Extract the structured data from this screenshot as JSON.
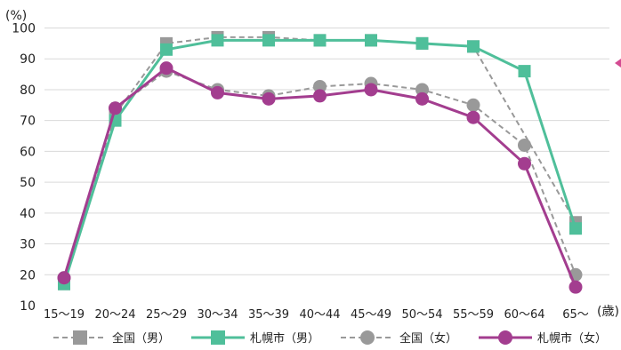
{
  "chart_data": {
    "type": "line",
    "y_unit_label": "(%)",
    "x_unit_label": "(歳)",
    "ylim": [
      10,
      100
    ],
    "yticks": [
      10,
      20,
      30,
      40,
      50,
      60,
      70,
      80,
      90,
      100
    ],
    "grid": true,
    "legend_position": "bottom",
    "categories": [
      "15〜19",
      "20〜24",
      "25〜29",
      "30〜34",
      "35〜39",
      "40〜44",
      "45〜49",
      "50〜54",
      "55〜59",
      "60〜64",
      "65〜"
    ],
    "series": [
      {
        "name": "全国（男）",
        "color": "#999999",
        "line_style": "dashed",
        "marker": "square",
        "values": [
          17,
          72,
          95,
          97,
          97,
          96,
          96,
          95,
          94,
          null,
          37
        ]
      },
      {
        "name": "札幌市（男）",
        "color": "#4fbf9a",
        "line_style": "solid",
        "marker": "square",
        "values": [
          17,
          70,
          93,
          96,
          96,
          96,
          96,
          95,
          94,
          86,
          35
        ]
      },
      {
        "name": "全国（女）",
        "color": "#999999",
        "line_style": "dashed",
        "marker": "circle",
        "values": [
          19,
          74,
          86,
          80,
          78,
          81,
          82,
          80,
          75,
          62,
          20
        ]
      },
      {
        "name": "札幌市（女）",
        "color": "#a33d8f",
        "line_style": "solid",
        "marker": "circle",
        "values": [
          19,
          74,
          87,
          79,
          77,
          78,
          80,
          77,
          71,
          56,
          16
        ]
      }
    ]
  },
  "colors": {
    "grid": "#d9d9d9",
    "edge_arrow": "#d44b92"
  }
}
